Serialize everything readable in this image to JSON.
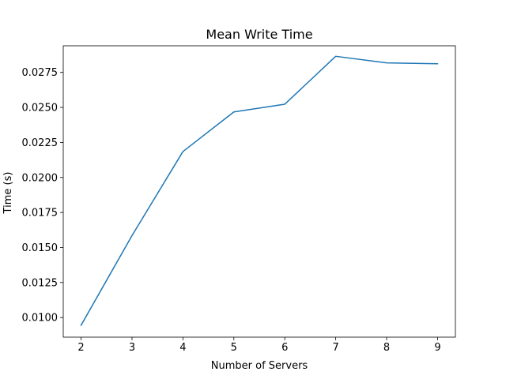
{
  "chart_data": {
    "type": "line",
    "title": "Mean Write Time",
    "xlabel": "Number of Servers",
    "ylabel": "Time (s)",
    "x": [
      2,
      3,
      4,
      5,
      6,
      7,
      8,
      9
    ],
    "series": [
      {
        "values": [
          0.00945,
          0.01585,
          0.02185,
          0.02468,
          0.02523,
          0.02865,
          0.02818,
          0.02812
        ],
        "color": "#1f77b4"
      }
    ],
    "xlim": [
      1.65,
      9.35
    ],
    "ylim": [
      0.0086,
      0.0294
    ],
    "xticks": [
      2,
      3,
      4,
      5,
      6,
      7,
      8,
      9
    ],
    "xtick_labels": [
      "2",
      "3",
      "4",
      "5",
      "6",
      "7",
      "8",
      "9"
    ],
    "yticks": [
      0.01,
      0.0125,
      0.015,
      0.0175,
      0.02,
      0.0225,
      0.025,
      0.0275
    ],
    "ytick_labels": [
      "0.0100",
      "0.0125",
      "0.0150",
      "0.0175",
      "0.0200",
      "0.0225",
      "0.0250",
      "0.0275"
    ],
    "grid": false,
    "legend": false
  }
}
